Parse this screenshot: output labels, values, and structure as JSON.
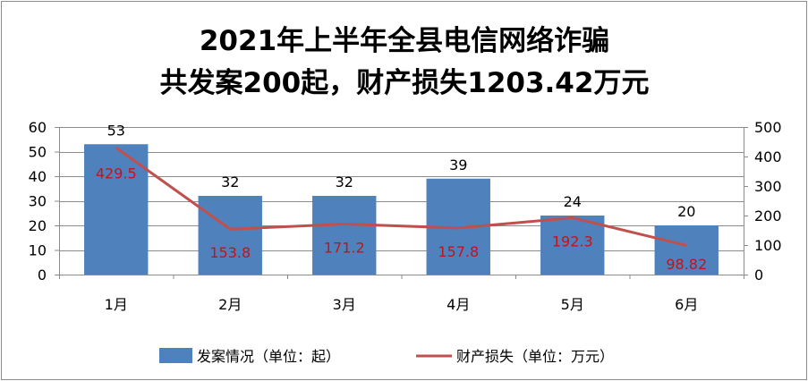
{
  "chart_data": {
    "type": "bar",
    "title_lines": [
      "2021年上半年全县电信网络诈骗",
      "共发案200起，财产损失1203.42万元"
    ],
    "categories": [
      "1月",
      "2月",
      "3月",
      "4月",
      "5月",
      "6月"
    ],
    "series": [
      {
        "name": "发案情况（单位：起）",
        "type": "bar",
        "axis": "left",
        "values": [
          53,
          32,
          32,
          39,
          24,
          20
        ],
        "labels": [
          "53",
          "32",
          "32",
          "39",
          "24",
          "20"
        ],
        "color": "#4f81bd"
      },
      {
        "name": "财产损失（单位：万元）",
        "type": "line",
        "axis": "right",
        "values": [
          429.5,
          153.8,
          171.2,
          157.8,
          192.3,
          98.82
        ],
        "labels": [
          "429.5",
          "153.8",
          "171.2",
          "157.8",
          "192.3",
          "98.82"
        ],
        "color": "#c0504d",
        "label_color": "#c0141c"
      }
    ],
    "y_left": {
      "min": 0,
      "max": 60,
      "ticks": [
        "0",
        "10",
        "20",
        "30",
        "40",
        "50",
        "60"
      ]
    },
    "y_right": {
      "min": 0,
      "max": 500,
      "ticks": [
        "0",
        "100",
        "200",
        "300",
        "400",
        "500"
      ]
    },
    "grid": true,
    "grid_color": "#8c8c8c",
    "legend_position": "bottom"
  }
}
